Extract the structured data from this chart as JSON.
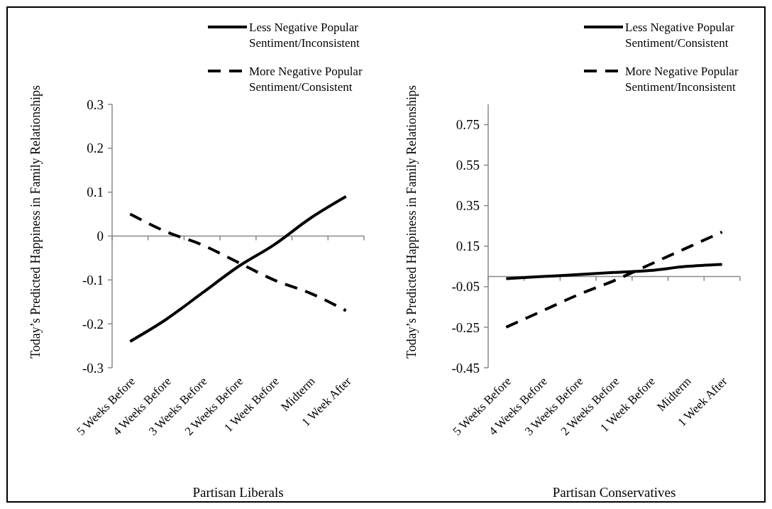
{
  "chart_data": [
    {
      "type": "line",
      "xlabel": "Partisan Liberals",
      "ylabel": "Today’s Predicted Happiness in Family Relationships",
      "categories": [
        "5 Weeks Before",
        "4 Weeks Before",
        "3 Weeks Before",
        "2 Weeks Before",
        "1 Week Before",
        "Midterm",
        "1 Week After"
      ],
      "series": [
        {
          "name": "Less Negative Popular Sentiment/Inconsistent",
          "color": "#000000",
          "line_style": "solid",
          "values": [
            -0.24,
            -0.19,
            -0.13,
            -0.07,
            -0.02,
            0.04,
            0.09
          ]
        },
        {
          "name": "More Negative Popular Sentiment/Consistent",
          "color": "#000000",
          "line_style": "dashed",
          "values": [
            0.05,
            0.01,
            -0.02,
            -0.06,
            -0.1,
            -0.13,
            -0.17
          ]
        }
      ],
      "ylim": [
        -0.3,
        0.3
      ],
      "yticks": [
        -0.3,
        -0.2,
        -0.1,
        0,
        0.1,
        0.2,
        0.3
      ],
      "legend": "top right"
    },
    {
      "type": "line",
      "xlabel": "Partisan Conservatives",
      "ylabel": "Today’s Predicted Happiness in Family Relationships",
      "categories": [
        "5 Weeks Before",
        "4 Weeks Before",
        "3 Weeks Before",
        "2 Weeks Before",
        "1 Week Before",
        "Midterm",
        "1 Week After"
      ],
      "series": [
        {
          "name": "Less Negative Popular Sentiment/Consistent",
          "color": "#000000",
          "line_style": "solid",
          "values": [
            -0.01,
            0,
            0.01,
            0.02,
            0.03,
            0.05,
            0.06
          ]
        },
        {
          "name": "More Negative Popular Sentiment/Inconsistent",
          "color": "#000000",
          "line_style": "dashed",
          "values": [
            -0.25,
            -0.17,
            -0.09,
            -0.02,
            0.06,
            0.14,
            0.22
          ]
        }
      ],
      "ylim": [
        -0.45,
        0.85
      ],
      "yticks": [
        -0.45,
        -0.25,
        -0.05,
        0.15,
        0.35,
        0.55,
        0.75
      ],
      "legend": "top right"
    }
  ]
}
